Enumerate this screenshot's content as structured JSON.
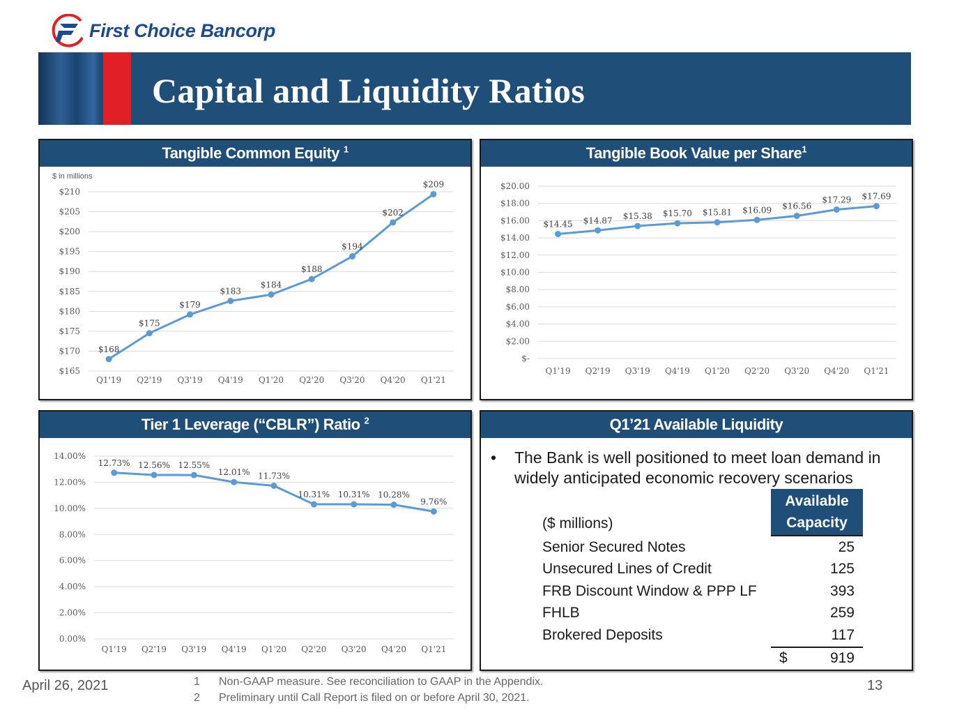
{
  "header": {
    "company_name": "First Choice Bancorp",
    "title": "Capital and Liquidity Ratios",
    "colors": {
      "navy": "#1f4e79",
      "red": "#e01f26",
      "line": "#5b9bd5"
    }
  },
  "chart_data": [
    {
      "id": "tce",
      "type": "line",
      "title": "Tangible Common Equity",
      "title_sup": "1",
      "unit_note": "$ in millions",
      "categories": [
        "Q1'19",
        "Q2'19",
        "Q3'19",
        "Q4'19",
        "Q1'20",
        "Q2'20",
        "Q3'20",
        "Q4'20",
        "Q1'21"
      ],
      "values": [
        168,
        174.5,
        179.2,
        182.6,
        184.2,
        188.1,
        193.8,
        202.3,
        209.4
      ],
      "data_labels": [
        "$168",
        "$175",
        "$179",
        "$183",
        "$184",
        "$188",
        "$194",
        "$202",
        "$209"
      ],
      "ylim": [
        165,
        210
      ],
      "yticks": [
        165,
        170,
        175,
        180,
        185,
        190,
        195,
        200,
        205,
        210
      ],
      "ytick_labels": [
        "$165",
        "$170",
        "$175",
        "$180",
        "$185",
        "$190",
        "$195",
        "$200",
        "$205",
        "$210"
      ],
      "grid": true
    },
    {
      "id": "tbv",
      "type": "line",
      "title": "Tangible Book Value per Share",
      "title_sup": "1",
      "categories": [
        "Q1'19",
        "Q2'19",
        "Q3'19",
        "Q4'19",
        "Q1'20",
        "Q2'20",
        "Q3'20",
        "Q4'20",
        "Q1'21"
      ],
      "values": [
        14.45,
        14.87,
        15.38,
        15.7,
        15.81,
        16.09,
        16.56,
        17.29,
        17.69
      ],
      "data_labels": [
        "$14.45",
        "$14.87",
        "$15.38",
        "$15.70",
        "$15.81",
        "$16.09",
        "$16.56",
        "$17.29",
        "$17.69"
      ],
      "ylim": [
        0,
        20
      ],
      "yticks": [
        0,
        2,
        4,
        6,
        8,
        10,
        12,
        14,
        16,
        18,
        20
      ],
      "ytick_labels": [
        "$-",
        "$2.00",
        "$4.00",
        "$6.00",
        "$8.00",
        "$10.00",
        "$12.00",
        "$14.00",
        "$16.00",
        "$18.00",
        "$20.00"
      ],
      "grid": true
    },
    {
      "id": "cblr",
      "type": "line",
      "title": "Tier 1 Leverage (“CBLR”) Ratio",
      "title_sup": "2",
      "categories": [
        "Q1'19",
        "Q2'19",
        "Q3'19",
        "Q4'19",
        "Q1'20",
        "Q2'20",
        "Q3'20",
        "Q4'20",
        "Q1'21"
      ],
      "values": [
        12.73,
        12.56,
        12.55,
        12.01,
        11.73,
        10.31,
        10.31,
        10.28,
        9.76
      ],
      "data_labels": [
        "12.73%",
        "12.56%",
        "12.55%",
        "12.01%",
        "11.73%",
        "10.31%",
        "10.31%",
        "10.28%",
        "9.76%"
      ],
      "ylim": [
        0,
        14
      ],
      "yticks": [
        0,
        2,
        4,
        6,
        8,
        10,
        12,
        14
      ],
      "ytick_labels": [
        "0.00%",
        "2.00%",
        "4.00%",
        "6.00%",
        "8.00%",
        "10.00%",
        "12.00%",
        "14.00%"
      ],
      "grid": true
    }
  ],
  "liquidity": {
    "title": "Q1’21 Available Liquidity",
    "bullet": "The Bank is well positioned to meet loan demand in widely anticipated economic recovery scenarios",
    "unit_label": "($ millions)",
    "capacity_header": "Available Capacity",
    "rows": [
      {
        "label": "Senior Secured Notes",
        "value": "25"
      },
      {
        "label": "Unsecured Lines of Credit",
        "value": "125"
      },
      {
        "label": "FRB Discount Window & PPP LF",
        "value": "393"
      },
      {
        "label": "FHLB",
        "value": "259"
      },
      {
        "label": "Brokered Deposits",
        "value": "117"
      }
    ],
    "total_currency": "$",
    "total_value": "919"
  },
  "footer": {
    "date": "April 26, 2021",
    "notes": [
      {
        "num": "1",
        "text": "Non-GAAP measure.  See reconciliation to GAAP in the Appendix."
      },
      {
        "num": "2",
        "text": "Preliminary until Call Report is filed on or before April 30, 2021."
      }
    ],
    "page": "13"
  }
}
